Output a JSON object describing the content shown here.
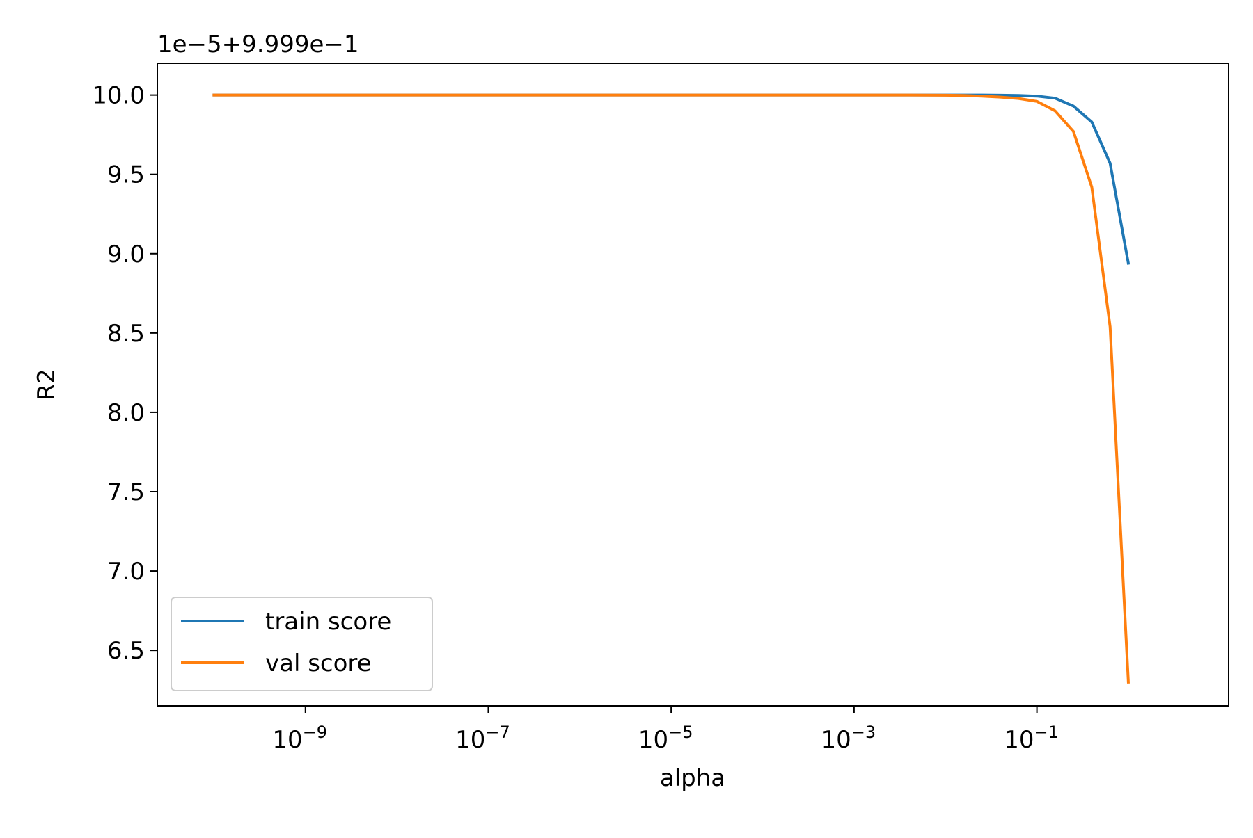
{
  "chart_data": {
    "type": "line",
    "title": "",
    "xlabel": "alpha",
    "ylabel": "R2",
    "offset_text": "1e−5+9.999e−1",
    "x_scale": "log",
    "xlim": [
      2.4e-11,
      12.5
    ],
    "ylim": [
      6.15,
      10.2
    ],
    "x_ticks": [
      {
        "value": 1e-09,
        "base": "10",
        "exp": "−9"
      },
      {
        "value": 1e-07,
        "base": "10",
        "exp": "−7"
      },
      {
        "value": 1e-05,
        "base": "10",
        "exp": "−5"
      },
      {
        "value": 0.001,
        "base": "10",
        "exp": "−3"
      },
      {
        "value": 0.1,
        "base": "10",
        "exp": "−1"
      }
    ],
    "y_ticks": [
      6.5,
      7.0,
      7.5,
      8.0,
      8.5,
      9.0,
      9.5,
      10.0
    ],
    "y_tick_labels": [
      "6.5",
      "7.0",
      "7.5",
      "8.0",
      "8.5",
      "9.0",
      "9.5",
      "10.0"
    ],
    "grid": false,
    "legend_position": "lower-left",
    "x": [
      1e-10,
      1e-09,
      1e-08,
      1e-07,
      1e-06,
      1e-05,
      0.0001,
      0.001,
      0.00398,
      0.01,
      0.0158,
      0.0251,
      0.0398,
      0.0631,
      0.1,
      0.158,
      0.251,
      0.398,
      0.631,
      1.0
    ],
    "series": [
      {
        "name": "train score",
        "color": "#1f77b4",
        "values": [
          10.0,
          10.0,
          10.0,
          10.0,
          10.0,
          10.0,
          10.0,
          10.0,
          10.0,
          10.0,
          10.0,
          10.0,
          9.999,
          9.997,
          9.993,
          9.98,
          9.93,
          9.83,
          9.57,
          8.94
        ]
      },
      {
        "name": "val score",
        "color": "#ff7f0e",
        "values": [
          10.0,
          10.0,
          10.0,
          10.0,
          10.0,
          10.0,
          10.0,
          10.0,
          10.0,
          9.999,
          9.997,
          9.993,
          9.987,
          9.978,
          9.96,
          9.9,
          9.77,
          9.42,
          8.54,
          6.3
        ]
      }
    ]
  }
}
